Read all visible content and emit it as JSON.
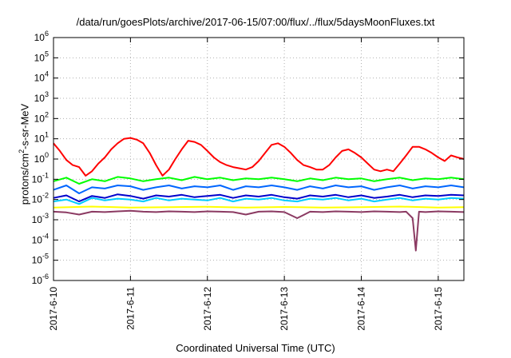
{
  "chart_data": {
    "type": "line",
    "title": "/data/run/goesPlots/archive/2017-06-15/07:00/flux/../flux/5daysMoonFluxes.txt",
    "xlabel": "Coordinated Universal Time (UTC)",
    "ylabel": "protons/cm2-s-sr-MeV",
    "ylabel_parts": [
      "protons/cm",
      "2",
      "-s-sr-MeV"
    ],
    "y_scale": "log",
    "ylim": [
      1e-06,
      1000000.0
    ],
    "y_ticks": [
      {
        "base": "10",
        "exp": "-6"
      },
      {
        "base": "10",
        "exp": "-5"
      },
      {
        "base": "10",
        "exp": "-4"
      },
      {
        "base": "10",
        "exp": "-3"
      },
      {
        "base": "10",
        "exp": "-2"
      },
      {
        "base": "10",
        "exp": "-1"
      },
      {
        "base": "10",
        "exp": "0"
      },
      {
        "base": "10",
        "exp": "1"
      },
      {
        "base": "10",
        "exp": "2"
      },
      {
        "base": "10",
        "exp": "3"
      },
      {
        "base": "10",
        "exp": "4"
      },
      {
        "base": "10",
        "exp": "5"
      },
      {
        "base": "10",
        "exp": "6"
      }
    ],
    "x_ticks": [
      "2017-6-10",
      "2017-6-11",
      "2017-6-12",
      "2017-6-13",
      "2017-6-14",
      "2017-6-15"
    ],
    "xlim": [
      "2017-06-10 00:00",
      "2017-06-15 08:00"
    ],
    "grid": true,
    "series": [
      {
        "color": "#ff0000",
        "x": [
          "2017-06-10 00:00",
          "2017-06-10 02:00",
          "2017-06-10 04:00",
          "2017-06-10 06:00",
          "2017-06-10 08:00",
          "2017-06-10 10:00",
          "2017-06-10 12:00",
          "2017-06-10 14:00",
          "2017-06-10 16:00",
          "2017-06-10 18:00",
          "2017-06-10 20:00",
          "2017-06-10 22:00",
          "2017-06-11 00:00",
          "2017-06-11 02:00",
          "2017-06-11 04:00",
          "2017-06-11 06:00",
          "2017-06-11 08:00",
          "2017-06-11 10:00",
          "2017-06-11 12:00",
          "2017-06-11 14:00",
          "2017-06-11 16:00",
          "2017-06-11 18:00",
          "2017-06-11 20:00",
          "2017-06-11 22:00",
          "2017-06-12 00:00",
          "2017-06-12 02:00",
          "2017-06-12 04:00",
          "2017-06-12 06:00",
          "2017-06-12 08:00",
          "2017-06-12 10:00",
          "2017-06-12 12:00",
          "2017-06-12 14:00",
          "2017-06-12 16:00",
          "2017-06-12 18:00",
          "2017-06-12 20:00",
          "2017-06-12 22:00",
          "2017-06-13 00:00",
          "2017-06-13 02:00",
          "2017-06-13 04:00",
          "2017-06-13 06:00",
          "2017-06-13 08:00",
          "2017-06-13 10:00",
          "2017-06-13 12:00",
          "2017-06-13 14:00",
          "2017-06-13 16:00",
          "2017-06-13 18:00",
          "2017-06-13 20:00",
          "2017-06-13 22:00",
          "2017-06-14 00:00",
          "2017-06-14 02:00",
          "2017-06-14 04:00",
          "2017-06-14 06:00",
          "2017-06-14 08:00",
          "2017-06-14 10:00",
          "2017-06-14 12:00",
          "2017-06-14 14:00",
          "2017-06-14 16:00",
          "2017-06-14 18:00",
          "2017-06-14 20:00",
          "2017-06-14 22:00",
          "2017-06-15 00:00",
          "2017-06-15 02:00",
          "2017-06-15 04:00",
          "2017-06-15 06:00",
          "2017-06-15 08:00"
        ],
        "values": [
          6,
          2.5,
          0.9,
          0.5,
          0.4,
          0.15,
          0.25,
          0.6,
          1.2,
          3,
          6,
          10,
          11,
          9,
          6,
          2,
          0.5,
          0.15,
          0.3,
          1,
          3,
          8,
          7,
          5,
          2.5,
          1.2,
          0.7,
          0.5,
          0.4,
          0.35,
          0.3,
          0.4,
          0.8,
          2,
          5,
          6,
          4,
          2,
          0.9,
          0.5,
          0.4,
          0.3,
          0.3,
          0.5,
          1.2,
          2.5,
          3,
          2,
          1.2,
          0.6,
          0.3,
          0.25,
          0.3,
          0.25,
          0.6,
          1.5,
          4,
          4,
          3,
          2,
          1.2,
          0.8,
          1.5,
          1.2,
          1
        ]
      },
      {
        "color": "#00ff00",
        "x": [
          "2017-06-10 00:00",
          "2017-06-10 04:00",
          "2017-06-10 08:00",
          "2017-06-10 12:00",
          "2017-06-10 16:00",
          "2017-06-10 20:00",
          "2017-06-11 00:00",
          "2017-06-11 04:00",
          "2017-06-11 08:00",
          "2017-06-11 12:00",
          "2017-06-11 16:00",
          "2017-06-11 20:00",
          "2017-06-12 00:00",
          "2017-06-12 04:00",
          "2017-06-12 08:00",
          "2017-06-12 12:00",
          "2017-06-12 16:00",
          "2017-06-12 20:00",
          "2017-06-13 00:00",
          "2017-06-13 04:00",
          "2017-06-13 08:00",
          "2017-06-13 12:00",
          "2017-06-13 16:00",
          "2017-06-13 20:00",
          "2017-06-14 00:00",
          "2017-06-14 04:00",
          "2017-06-14 08:00",
          "2017-06-14 12:00",
          "2017-06-14 16:00",
          "2017-06-14 20:00",
          "2017-06-15 00:00",
          "2017-06-15 04:00",
          "2017-06-15 08:00"
        ],
        "values": [
          0.08,
          0.12,
          0.06,
          0.1,
          0.08,
          0.13,
          0.11,
          0.08,
          0.1,
          0.12,
          0.09,
          0.13,
          0.1,
          0.12,
          0.09,
          0.11,
          0.1,
          0.12,
          0.1,
          0.08,
          0.11,
          0.09,
          0.12,
          0.1,
          0.11,
          0.08,
          0.1,
          0.12,
          0.09,
          0.11,
          0.1,
          0.12,
          0.1
        ]
      },
      {
        "color": "#00ccff",
        "x": [
          "2017-06-10 00:00",
          "2017-06-10 04:00",
          "2017-06-10 08:00",
          "2017-06-10 12:00",
          "2017-06-10 16:00",
          "2017-06-10 20:00",
          "2017-06-11 00:00",
          "2017-06-11 04:00",
          "2017-06-11 08:00",
          "2017-06-11 12:00",
          "2017-06-11 16:00",
          "2017-06-11 20:00",
          "2017-06-12 00:00",
          "2017-06-12 04:00",
          "2017-06-12 08:00",
          "2017-06-12 12:00",
          "2017-06-12 16:00",
          "2017-06-12 20:00",
          "2017-06-13 00:00",
          "2017-06-13 04:00",
          "2017-06-13 08:00",
          "2017-06-13 12:00",
          "2017-06-13 16:00",
          "2017-06-13 20:00",
          "2017-06-14 00:00",
          "2017-06-14 04:00",
          "2017-06-14 08:00",
          "2017-06-14 12:00",
          "2017-06-14 16:00",
          "2017-06-14 20:00",
          "2017-06-15 00:00",
          "2017-06-15 04:00",
          "2017-06-15 08:00"
        ],
        "values": [
          0.008,
          0.01,
          0.006,
          0.012,
          0.009,
          0.011,
          0.01,
          0.008,
          0.012,
          0.009,
          0.011,
          0.01,
          0.009,
          0.012,
          0.008,
          0.011,
          0.01,
          0.012,
          0.009,
          0.008,
          0.011,
          0.01,
          0.012,
          0.009,
          0.011,
          0.008,
          0.01,
          0.012,
          0.009,
          0.011,
          0.01,
          0.012,
          0.011
        ]
      },
      {
        "color": "#0066ff",
        "x": [
          "2017-06-10 00:00",
          "2017-06-10 04:00",
          "2017-06-10 08:00",
          "2017-06-10 12:00",
          "2017-06-10 16:00",
          "2017-06-10 20:00",
          "2017-06-11 00:00",
          "2017-06-11 04:00",
          "2017-06-11 08:00",
          "2017-06-11 12:00",
          "2017-06-11 16:00",
          "2017-06-11 20:00",
          "2017-06-12 00:00",
          "2017-06-12 04:00",
          "2017-06-12 08:00",
          "2017-06-12 12:00",
          "2017-06-12 16:00",
          "2017-06-12 20:00",
          "2017-06-13 00:00",
          "2017-06-13 04:00",
          "2017-06-13 08:00",
          "2017-06-13 12:00",
          "2017-06-13 16:00",
          "2017-06-13 20:00",
          "2017-06-14 00:00",
          "2017-06-14 04:00",
          "2017-06-14 08:00",
          "2017-06-14 12:00",
          "2017-06-14 16:00",
          "2017-06-14 20:00",
          "2017-06-15 00:00",
          "2017-06-15 04:00",
          "2017-06-15 08:00"
        ],
        "values": [
          0.03,
          0.05,
          0.02,
          0.04,
          0.035,
          0.05,
          0.045,
          0.03,
          0.04,
          0.05,
          0.035,
          0.045,
          0.04,
          0.05,
          0.03,
          0.045,
          0.04,
          0.05,
          0.04,
          0.03,
          0.045,
          0.035,
          0.05,
          0.04,
          0.045,
          0.03,
          0.04,
          0.05,
          0.035,
          0.045,
          0.04,
          0.05,
          0.04
        ]
      },
      {
        "color": "#0000cc",
        "x": [
          "2017-06-10 00:00",
          "2017-06-10 04:00",
          "2017-06-10 08:00",
          "2017-06-10 12:00",
          "2017-06-10 16:00",
          "2017-06-10 20:00",
          "2017-06-11 00:00",
          "2017-06-11 04:00",
          "2017-06-11 08:00",
          "2017-06-11 12:00",
          "2017-06-11 16:00",
          "2017-06-11 20:00",
          "2017-06-12 00:00",
          "2017-06-12 04:00",
          "2017-06-12 08:00",
          "2017-06-12 12:00",
          "2017-06-12 16:00",
          "2017-06-12 20:00",
          "2017-06-13 00:00",
          "2017-06-13 04:00",
          "2017-06-13 08:00",
          "2017-06-13 12:00",
          "2017-06-13 16:00",
          "2017-06-13 20:00",
          "2017-06-14 00:00",
          "2017-06-14 04:00",
          "2017-06-14 08:00",
          "2017-06-14 12:00",
          "2017-06-14 16:00",
          "2017-06-14 20:00",
          "2017-06-15 00:00",
          "2017-06-15 04:00",
          "2017-06-15 08:00"
        ],
        "values": [
          0.012,
          0.016,
          0.008,
          0.015,
          0.012,
          0.018,
          0.015,
          0.011,
          0.016,
          0.014,
          0.017,
          0.013,
          0.015,
          0.017,
          0.012,
          0.016,
          0.014,
          0.017,
          0.013,
          0.011,
          0.016,
          0.014,
          0.017,
          0.013,
          0.016,
          0.012,
          0.014,
          0.017,
          0.013,
          0.016,
          0.015,
          0.017,
          0.016
        ]
      },
      {
        "color": "#ffff00",
        "x": [
          "2017-06-10 00:00",
          "2017-06-10 12:00",
          "2017-06-11 00:00",
          "2017-06-11 12:00",
          "2017-06-12 00:00",
          "2017-06-12 12:00",
          "2017-06-13 00:00",
          "2017-06-13 12:00",
          "2017-06-14 00:00",
          "2017-06-14 12:00",
          "2017-06-15 00:00",
          "2017-06-15 08:00"
        ],
        "values": [
          0.004,
          0.0045,
          0.004,
          0.0042,
          0.0044,
          0.004,
          0.0043,
          0.004,
          0.0042,
          0.0045,
          0.004,
          0.0042
        ]
      },
      {
        "color": "#8b3a62",
        "x": [
          "2017-06-10 00:00",
          "2017-06-10 04:00",
          "2017-06-10 08:00",
          "2017-06-10 12:00",
          "2017-06-10 16:00",
          "2017-06-10 20:00",
          "2017-06-11 00:00",
          "2017-06-11 04:00",
          "2017-06-11 08:00",
          "2017-06-11 12:00",
          "2017-06-11 16:00",
          "2017-06-11 20:00",
          "2017-06-12 00:00",
          "2017-06-12 04:00",
          "2017-06-12 08:00",
          "2017-06-12 12:00",
          "2017-06-12 16:00",
          "2017-06-12 20:00",
          "2017-06-13 00:00",
          "2017-06-13 04:00",
          "2017-06-13 08:00",
          "2017-06-13 12:00",
          "2017-06-13 16:00",
          "2017-06-13 20:00",
          "2017-06-14 00:00",
          "2017-06-14 04:00",
          "2017-06-14 08:00",
          "2017-06-14 12:00",
          "2017-06-14 14:00",
          "2017-06-14 16:00",
          "2017-06-14 17:00",
          "2017-06-14 18:00",
          "2017-06-14 20:00",
          "2017-06-15 00:00",
          "2017-06-15 04:00",
          "2017-06-15 08:00"
        ],
        "values": [
          0.0025,
          0.0023,
          0.0018,
          0.0025,
          0.0024,
          0.0026,
          0.0028,
          0.0025,
          0.0024,
          0.0026,
          0.0025,
          0.0024,
          0.0026,
          0.0025,
          0.0024,
          0.0018,
          0.0025,
          0.0026,
          0.0024,
          0.0012,
          0.0025,
          0.0024,
          0.0026,
          0.0025,
          0.0024,
          0.0026,
          0.0025,
          0.0024,
          0.0025,
          0.0012,
          3e-05,
          0.0025,
          0.0024,
          0.0026,
          0.0025,
          0.0024
        ]
      }
    ]
  }
}
